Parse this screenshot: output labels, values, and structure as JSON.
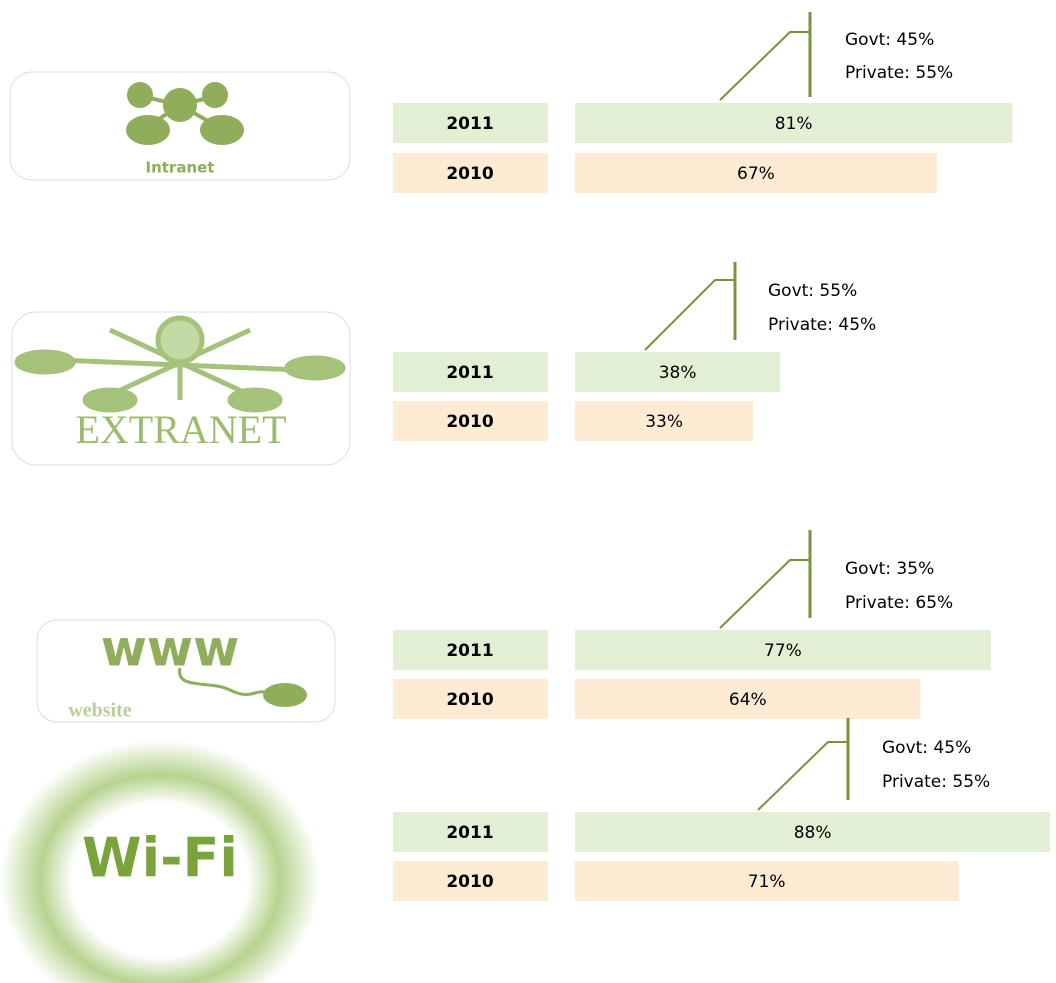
{
  "chart_data": [
    {
      "type": "bar",
      "orientation": "horizontal",
      "icon_text": [
        "Intranet"
      ],
      "categories": [
        "2011",
        "2010"
      ],
      "values": [
        81,
        67
      ],
      "value_labels": [
        "81%",
        "67%"
      ],
      "colors": [
        "#e3efd5",
        "#fdebd3"
      ],
      "xlim": [
        0,
        100
      ],
      "annotations": [
        "Govt: 45%",
        "Private: 55%"
      ]
    },
    {
      "type": "bar",
      "orientation": "horizontal",
      "icon_text": [
        "EXTRANET"
      ],
      "categories": [
        "2011",
        "2010"
      ],
      "values": [
        38,
        33
      ],
      "value_labels": [
        "38%",
        "33%"
      ],
      "colors": [
        "#e3efd5",
        "#fdebd3"
      ],
      "xlim": [
        0,
        100
      ],
      "annotations": [
        "Govt: 55%",
        "Private: 45%"
      ]
    },
    {
      "type": "bar",
      "orientation": "horizontal",
      "icon_text": [
        "www",
        "website"
      ],
      "categories": [
        "2011",
        "2010"
      ],
      "values": [
        77,
        64
      ],
      "value_labels": [
        "77%",
        "64%"
      ],
      "colors": [
        "#e3efd5",
        "#fdebd3"
      ],
      "xlim": [
        0,
        100
      ],
      "annotations": [
        "Govt: 35%",
        "Private: 65%"
      ]
    },
    {
      "type": "bar",
      "orientation": "horizontal",
      "icon_text": [
        "Wi-Fi"
      ],
      "categories": [
        "2011",
        "2010"
      ],
      "values": [
        88,
        71
      ],
      "value_labels": [
        "88%",
        "71%"
      ],
      "colors": [
        "#e3efd5",
        "#fdebd3"
      ],
      "xlim": [
        0,
        100
      ],
      "annotations": [
        "Govt: 45%",
        "Private: 55%"
      ]
    }
  ]
}
